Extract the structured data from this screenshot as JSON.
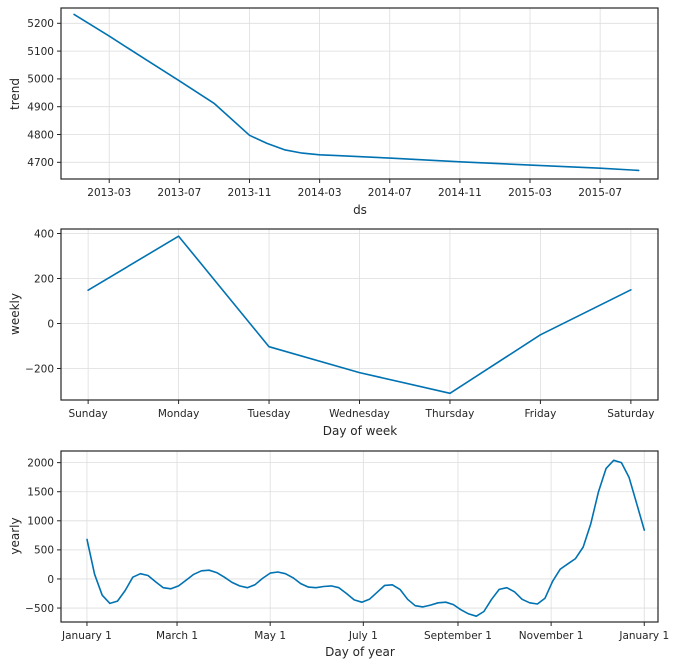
{
  "chart_data": [
    {
      "type": "line",
      "title": "",
      "xlabel": "ds",
      "ylabel": "trend",
      "x_ticks": [
        {
          "value": 2,
          "label": "2013-03"
        },
        {
          "value": 6,
          "label": "2013-07"
        },
        {
          "value": 10,
          "label": "2013-11"
        },
        {
          "value": 14,
          "label": "2014-03"
        },
        {
          "value": 18,
          "label": "2014-07"
        },
        {
          "value": 22,
          "label": "2014-11"
        },
        {
          "value": 26,
          "label": "2015-03"
        },
        {
          "value": 30,
          "label": "2015-07"
        }
      ],
      "y_ticks": [
        {
          "value": 4700,
          "label": "4700"
        },
        {
          "value": 4800,
          "label": "4800"
        },
        {
          "value": 4900,
          "label": "4900"
        },
        {
          "value": 5000,
          "label": "5000"
        },
        {
          "value": 5100,
          "label": "5100"
        },
        {
          "value": 5200,
          "label": "5200"
        }
      ],
      "xlim": [
        -0.75,
        33.3
      ],
      "ylim": [
        4640,
        5255
      ],
      "grid": true,
      "series": [
        {
          "name": "trend",
          "x": [
            0,
            2,
            4,
            6,
            8,
            10,
            11,
            12,
            13,
            14,
            15,
            18,
            22,
            26,
            30,
            32.2
          ],
          "y": [
            5232,
            5154,
            5073,
            4993,
            4911,
            4797,
            4768,
            4745,
            4733,
            4727,
            4724,
            4715,
            4702,
            4690,
            4679,
            4671
          ]
        }
      ]
    },
    {
      "type": "line",
      "title": "",
      "xlabel": "Day of week",
      "ylabel": "weekly",
      "x_ticks": [
        {
          "value": 0,
          "label": "Sunday"
        },
        {
          "value": 1,
          "label": "Monday"
        },
        {
          "value": 2,
          "label": "Tuesday"
        },
        {
          "value": 3,
          "label": "Wednesday"
        },
        {
          "value": 4,
          "label": "Thursday"
        },
        {
          "value": 5,
          "label": "Friday"
        },
        {
          "value": 6,
          "label": "Saturday"
        }
      ],
      "y_ticks": [
        {
          "value": -200,
          "label": "−200"
        },
        {
          "value": 0,
          "label": "0"
        },
        {
          "value": 200,
          "label": "200"
        },
        {
          "value": 400,
          "label": "400"
        }
      ],
      "xlim": [
        -0.3,
        6.3
      ],
      "ylim": [
        -340,
        420
      ],
      "grid": true,
      "series": [
        {
          "name": "weekly",
          "x": [
            0,
            1,
            2,
            3,
            4,
            5,
            6
          ],
          "y": [
            148,
            388,
            -103,
            -218,
            -310,
            -50,
            150
          ]
        }
      ]
    },
    {
      "type": "line",
      "title": "",
      "xlabel": "Day of year",
      "ylabel": "yearly",
      "x_ticks": [
        {
          "value": 0,
          "label": "January 1"
        },
        {
          "value": 59,
          "label": "March 1"
        },
        {
          "value": 120,
          "label": "May 1"
        },
        {
          "value": 181,
          "label": "July 1"
        },
        {
          "value": 243,
          "label": "September 1"
        },
        {
          "value": 304,
          "label": "November 1"
        },
        {
          "value": 365,
          "label": "January 1"
        }
      ],
      "y_ticks": [
        {
          "value": -500,
          "label": "−500"
        },
        {
          "value": 0,
          "label": "0"
        },
        {
          "value": 500,
          "label": "500"
        },
        {
          "value": 1000,
          "label": "1000"
        },
        {
          "value": 1500,
          "label": "1500"
        },
        {
          "value": 2000,
          "label": "2000"
        }
      ],
      "xlim": [
        -17,
        374
      ],
      "ylim": [
        -740,
        2200
      ],
      "grid": true,
      "series": [
        {
          "name": "yearly",
          "x": [
            0,
            5,
            10,
            15,
            20,
            25,
            30,
            35,
            40,
            45,
            50,
            55,
            60,
            65,
            70,
            75,
            80,
            85,
            90,
            95,
            100,
            105,
            110,
            115,
            120,
            125,
            130,
            135,
            140,
            145,
            150,
            155,
            160,
            165,
            170,
            175,
            180,
            185,
            190,
            195,
            200,
            205,
            210,
            215,
            220,
            225,
            230,
            235,
            240,
            245,
            250,
            255,
            260,
            265,
            270,
            275,
            280,
            285,
            290,
            295,
            300,
            305,
            310,
            315,
            320,
            325,
            330,
            335,
            340,
            345,
            350,
            355,
            360,
            365
          ],
          "y": [
            680,
            80,
            -280,
            -420,
            -380,
            -200,
            30,
            90,
            60,
            -50,
            -150,
            -170,
            -120,
            -20,
            80,
            140,
            150,
            110,
            30,
            -60,
            -120,
            -150,
            -100,
            10,
            100,
            120,
            90,
            20,
            -80,
            -140,
            -150,
            -130,
            -120,
            -150,
            -250,
            -360,
            -400,
            -350,
            -230,
            -110,
            -100,
            -180,
            -350,
            -460,
            -480,
            -450,
            -410,
            -400,
            -440,
            -530,
            -600,
            -640,
            -560,
            -350,
            -180,
            -150,
            -220,
            -350,
            -410,
            -430,
            -330,
            -40,
            170,
            260,
            350,
            550,
            950,
            1500,
            1900,
            2040,
            2000,
            1750,
            1300,
            840
          ]
        }
      ]
    }
  ]
}
